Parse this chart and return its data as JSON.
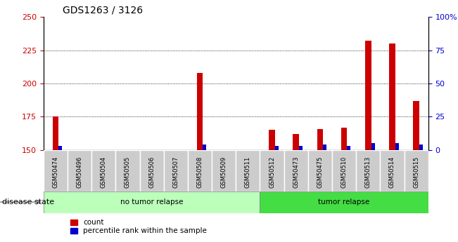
{
  "title": "GDS1263 / 3126",
  "samples": [
    "GSM50474",
    "GSM50496",
    "GSM50504",
    "GSM50505",
    "GSM50506",
    "GSM50507",
    "GSM50508",
    "GSM50509",
    "GSM50511",
    "GSM50512",
    "GSM50473",
    "GSM50475",
    "GSM50510",
    "GSM50513",
    "GSM50514",
    "GSM50515"
  ],
  "count_values": [
    175,
    150,
    150,
    150,
    150,
    150,
    208,
    150,
    150,
    165,
    162,
    166,
    167,
    232,
    230,
    187
  ],
  "percentile_values": [
    3,
    0,
    0,
    0,
    0,
    0,
    4,
    0,
    0,
    3,
    3,
    4,
    3,
    5,
    5,
    4
  ],
  "baseline": 150,
  "ylim_left": [
    150,
    250
  ],
  "ylim_right": [
    0,
    100
  ],
  "yticks_left": [
    150,
    175,
    200,
    225,
    250
  ],
  "yticks_right": [
    0,
    25,
    50,
    75,
    100
  ],
  "ytick_labels_right": [
    "0",
    "25",
    "50",
    "75",
    "100%"
  ],
  "no_tumor_count": 9,
  "tumor_count": 7,
  "groups": [
    {
      "label": "no tumor relapse",
      "color": "#bbffbb",
      "count": 9
    },
    {
      "label": "tumor relapse",
      "color": "#44dd44",
      "count": 7
    }
  ],
  "red_color": "#cc0000",
  "blue_color": "#0000cc",
  "left_tick_color": "#cc0000",
  "right_tick_color": "#0000cc",
  "xticklabel_bg": "#cccccc",
  "disease_state_label": "disease state",
  "legend_count_label": "count",
  "legend_pct_label": "percentile rank within the sample"
}
